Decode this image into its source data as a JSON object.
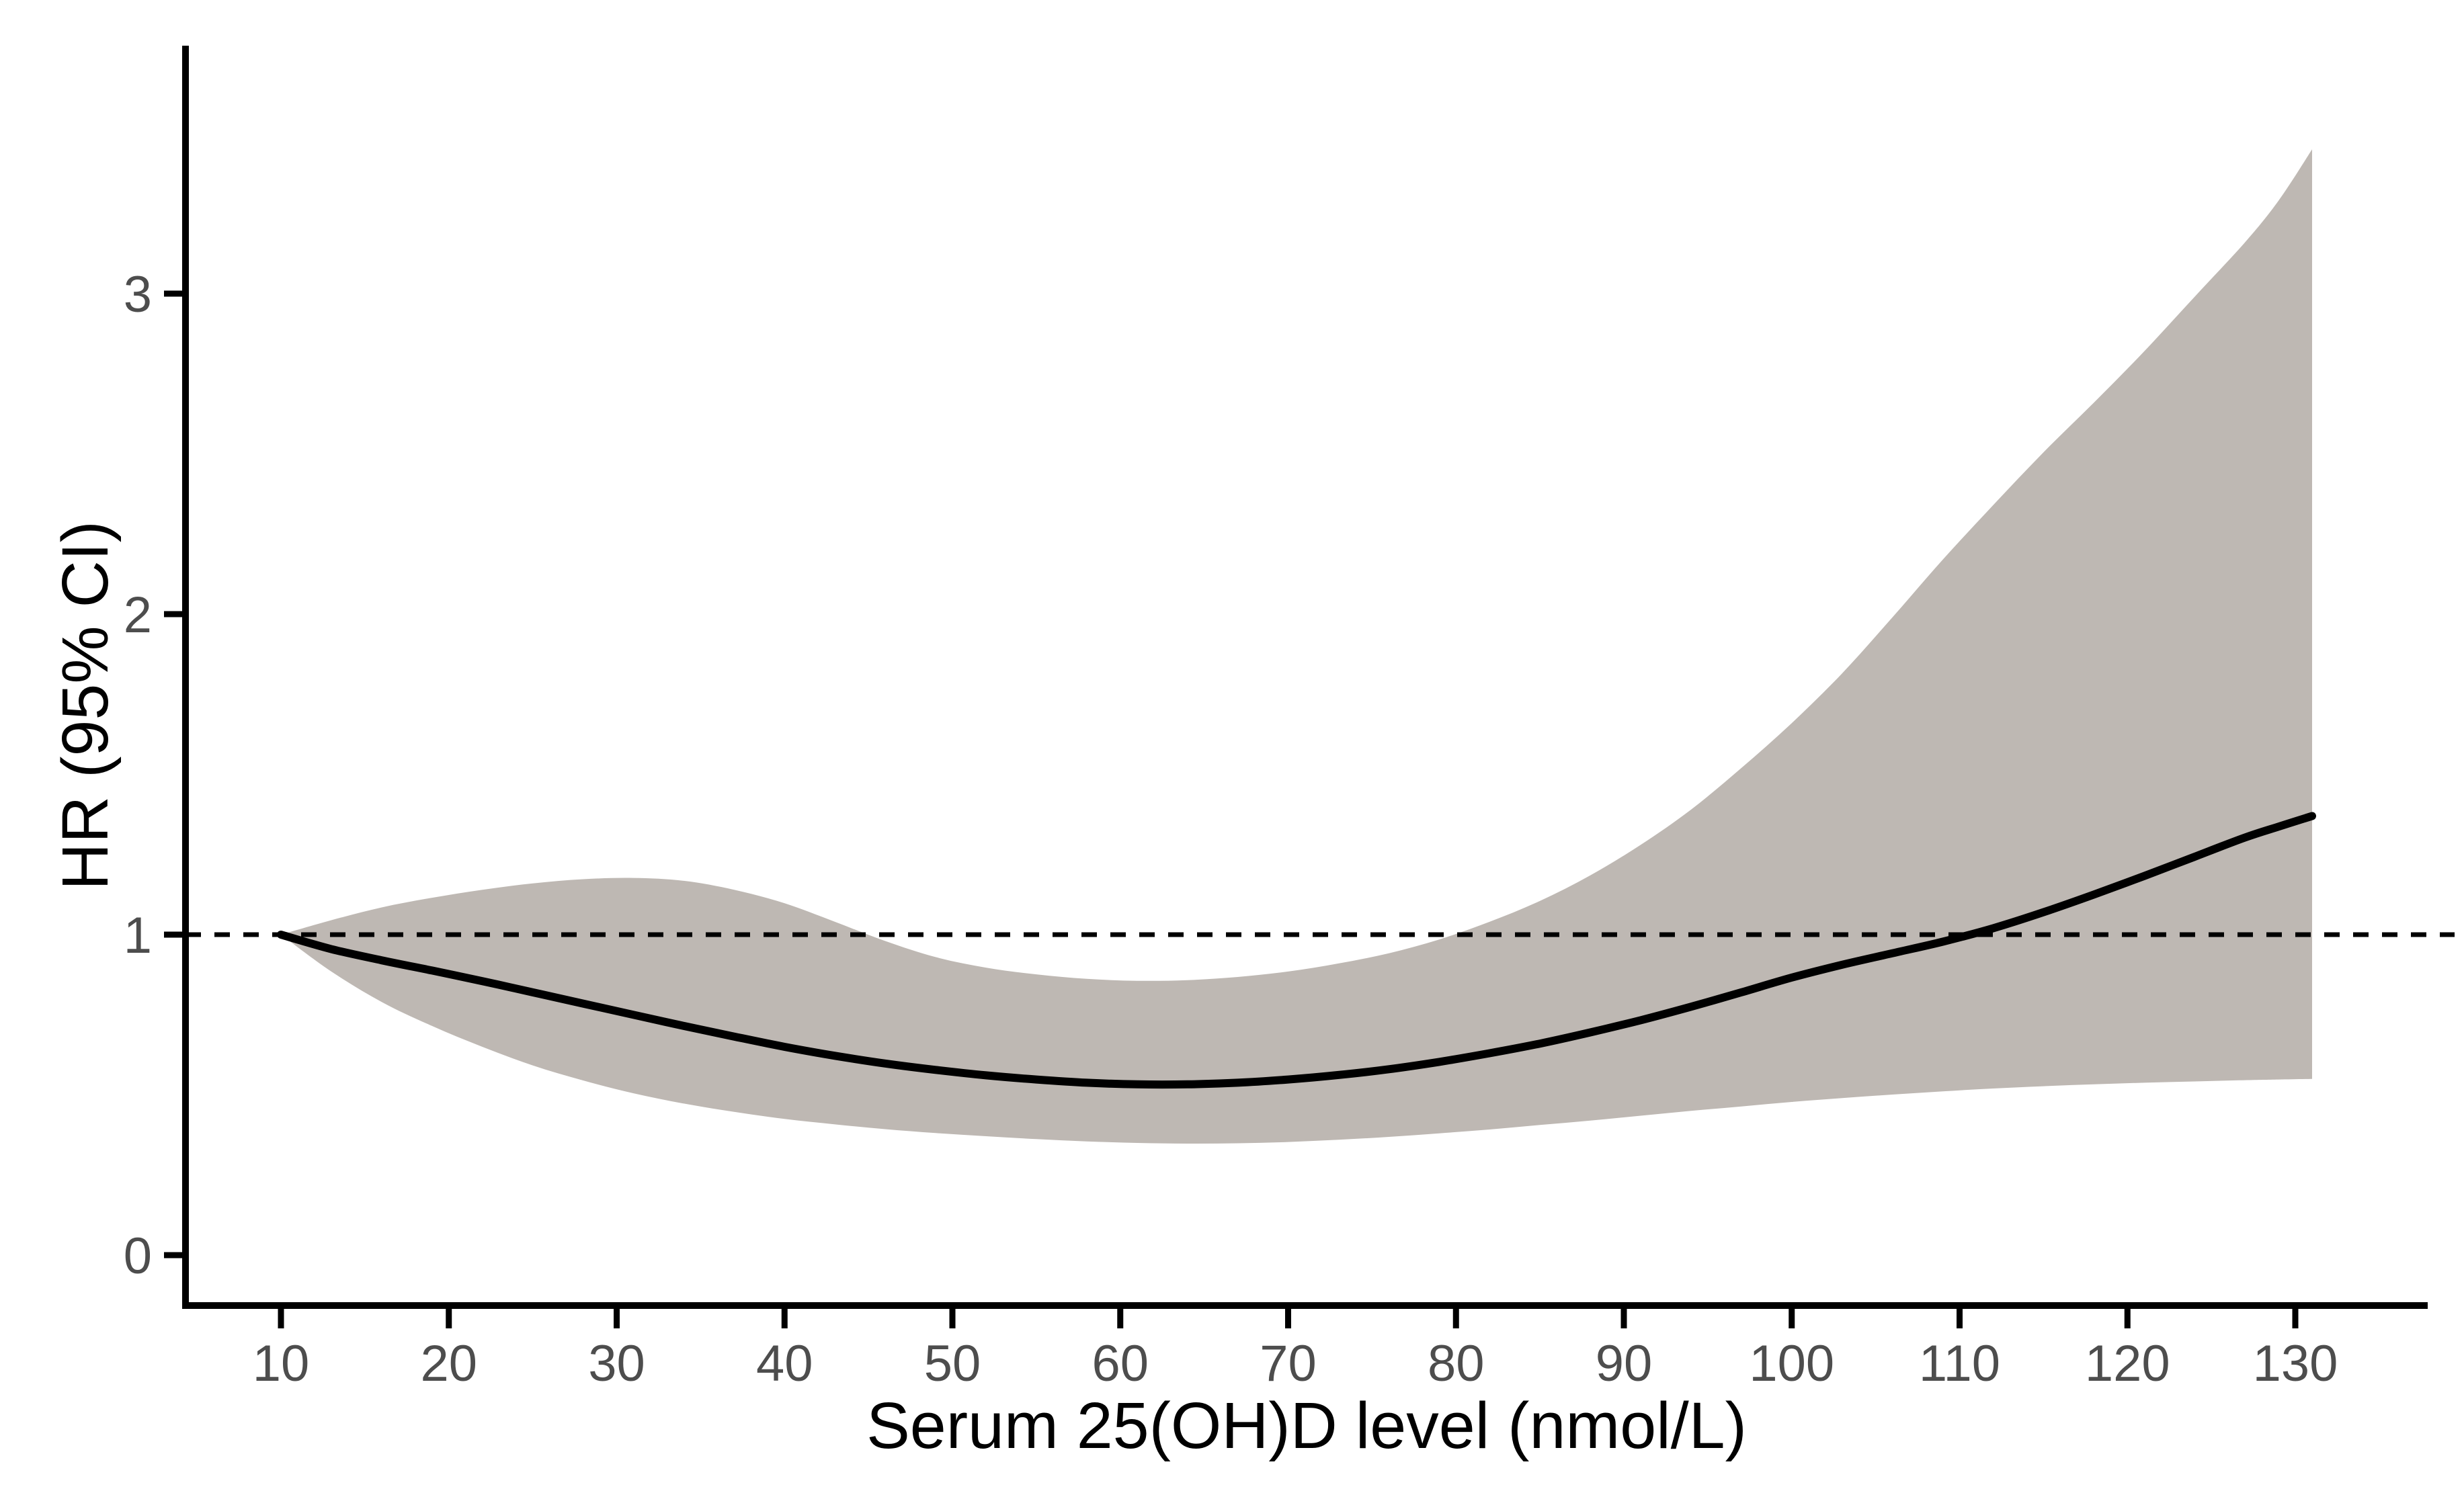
{
  "chart_data": {
    "type": "line",
    "title": "",
    "xlabel": "Serum 25(OH)D level (nmol/L)",
    "ylabel": "HR (95% CI)",
    "x_ticks": [
      10,
      20,
      30,
      40,
      50,
      60,
      70,
      80,
      90,
      100,
      110,
      120,
      130
    ],
    "y_ticks": [
      0,
      1,
      2,
      3
    ],
    "xlim": [
      4.3,
      137.9
    ],
    "ylim": [
      -0.16,
      3.77
    ],
    "x_range_of_data": [
      10,
      131
    ],
    "reference_line_y": 1,
    "reference_line_style": "dashed",
    "grid": false,
    "legend_position": "none",
    "x": [
      10,
      13,
      16,
      19,
      22,
      25,
      28,
      31,
      34,
      37,
      40,
      43,
      46,
      49,
      52,
      55,
      58,
      61,
      64,
      67,
      70,
      73,
      76,
      79,
      82,
      85,
      88,
      91,
      94,
      97,
      100,
      103,
      106,
      109,
      112,
      115,
      118,
      121,
      124,
      127,
      129,
      131
    ],
    "series": [
      {
        "name": "HR",
        "style": "solid-black-line",
        "values": [
          1.0,
          0.955,
          0.92,
          0.888,
          0.855,
          0.82,
          0.785,
          0.75,
          0.715,
          0.682,
          0.65,
          0.622,
          0.598,
          0.578,
          0.561,
          0.548,
          0.538,
          0.533,
          0.533,
          0.538,
          0.548,
          0.562,
          0.58,
          0.603,
          0.63,
          0.66,
          0.695,
          0.733,
          0.775,
          0.82,
          0.866,
          0.906,
          0.942,
          0.978,
          1.02,
          1.07,
          1.125,
          1.183,
          1.243,
          1.303,
          1.337,
          1.37
        ]
      },
      {
        "name": "95% CI lower",
        "style": "band-lower-edge",
        "values": [
          1.0,
          0.885,
          0.79,
          0.715,
          0.65,
          0.592,
          0.545,
          0.505,
          0.473,
          0.447,
          0.425,
          0.408,
          0.393,
          0.381,
          0.371,
          0.362,
          0.355,
          0.35,
          0.348,
          0.349,
          0.353,
          0.36,
          0.369,
          0.38,
          0.392,
          0.406,
          0.42,
          0.435,
          0.45,
          0.464,
          0.478,
          0.49,
          0.501,
          0.511,
          0.52,
          0.527,
          0.533,
          0.538,
          0.542,
          0.546,
          0.548,
          0.55
        ]
      },
      {
        "name": "95% CI upper",
        "style": "band-upper-edge",
        "values": [
          1.0,
          1.045,
          1.085,
          1.115,
          1.14,
          1.16,
          1.173,
          1.177,
          1.168,
          1.14,
          1.098,
          1.04,
          0.98,
          0.93,
          0.897,
          0.876,
          0.862,
          0.856,
          0.858,
          0.868,
          0.885,
          0.91,
          0.942,
          0.985,
          1.04,
          1.105,
          1.185,
          1.28,
          1.39,
          1.52,
          1.66,
          1.815,
          1.99,
          2.17,
          2.34,
          2.505,
          2.66,
          2.82,
          2.99,
          3.16,
          3.29,
          3.45
        ]
      }
    ],
    "annotations": {
      "curve_minimum": {
        "x": 62,
        "hr": 0.53
      },
      "curve_crosses_hr1_at_x": 110.5,
      "reference_point": {
        "x": 10,
        "hr": 1.0
      }
    },
    "colors": {
      "band_fill": "#beb8b3",
      "curve_stroke": "#000000",
      "reference_line_stroke": "#000000",
      "axis_stroke": "#000000",
      "tick_label_color": "#4d4d4d",
      "axis_title_color": "#000000",
      "background": "#ffffff"
    }
  }
}
